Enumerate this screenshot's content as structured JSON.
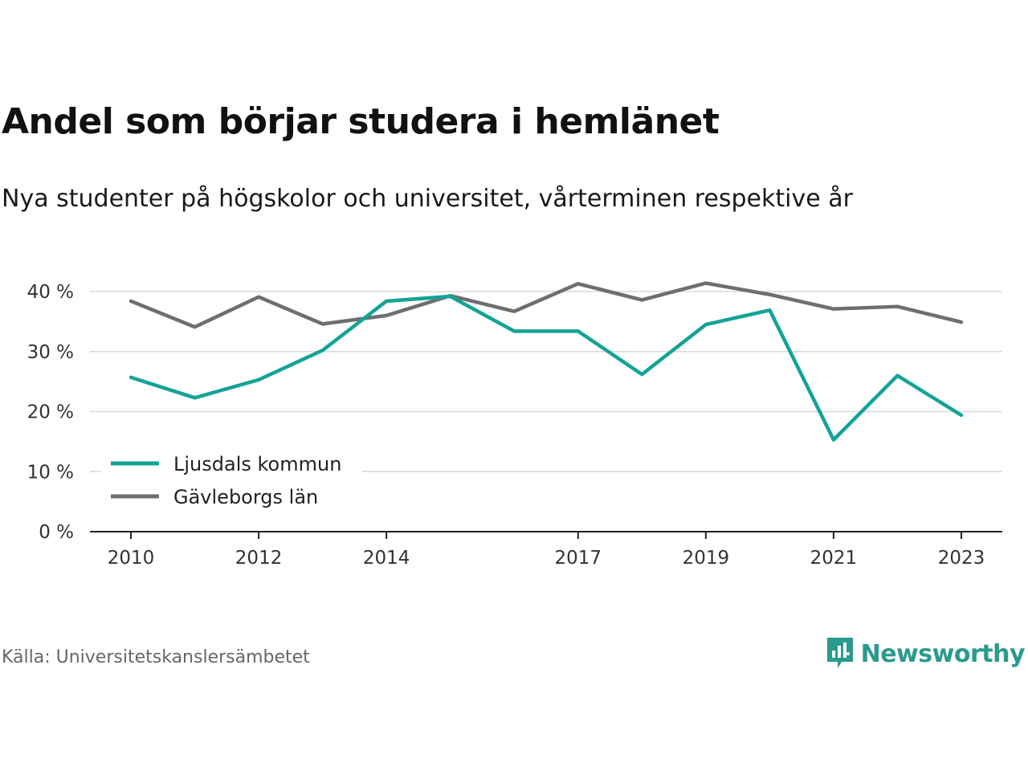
{
  "title": "Andel som börjar studera i hemlänet",
  "subtitle": "Nya studenter på högskolor och universitet, vårterminen respektive år",
  "source": "Källa: Universitetskanslersämbetet",
  "brand": {
    "name": "Newsworthy",
    "icon": "newsworthy-logo-icon",
    "color": "#2a9a8e"
  },
  "chart_data": {
    "type": "line",
    "title": "Andel som börjar studera i hemlänet",
    "subtitle": "Nya studenter på högskolor och universitet, vårterminen respektive år",
    "xlabel": "",
    "ylabel": "",
    "x": [
      2010,
      2011,
      2012,
      2013,
      2014,
      2015,
      2016,
      2017,
      2018,
      2019,
      2020,
      2021,
      2022,
      2023
    ],
    "x_ticks": [
      "2010",
      "2012",
      "2014",
      "2017",
      "2019",
      "2021",
      "2023"
    ],
    "y_ticks": [
      "0 %",
      "10 %",
      "20 %",
      "30 %",
      "40 %"
    ],
    "ylim": [
      0,
      40
    ],
    "grid": true,
    "legend_position": "bottom-left",
    "series": [
      {
        "name": "Ljusdals kommun",
        "color": "#13a397",
        "values": [
          25.7,
          22.3,
          25.3,
          30.2,
          38.4,
          39.2,
          33.4,
          33.4,
          26.2,
          34.5,
          36.9,
          15.3,
          26.0,
          19.4
        ]
      },
      {
        "name": "Gävleborgs län",
        "color": "#6e6d72",
        "values": [
          38.4,
          34.1,
          39.1,
          34.6,
          36.0,
          39.3,
          36.7,
          41.3,
          38.6,
          41.4,
          39.5,
          37.1,
          37.5,
          34.9
        ]
      }
    ]
  }
}
